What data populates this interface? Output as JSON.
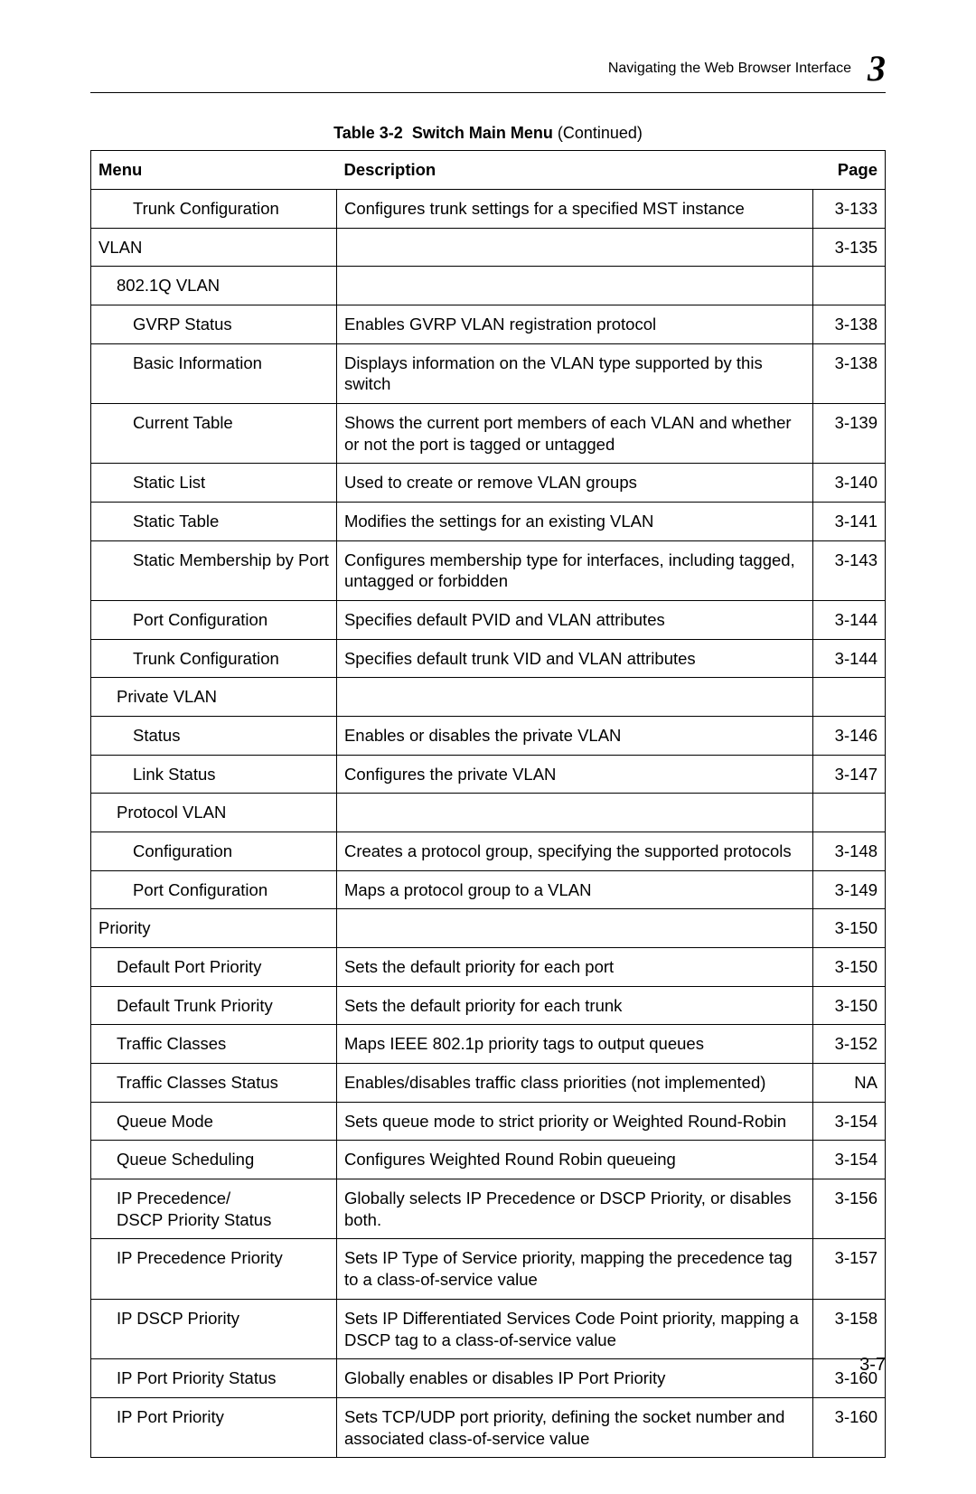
{
  "header": {
    "title": "Navigating the Web Browser Interface",
    "chapter_number": "3"
  },
  "caption": {
    "prefix": "Table 3-2",
    "title": "Switch Main Menu",
    "suffix": "(Continued)"
  },
  "table": {
    "columns": [
      "Menu",
      "Description",
      "Page"
    ],
    "rows": [
      {
        "indent": 2,
        "menu": "Trunk Configuration",
        "description": "Configures trunk settings for a specified MST instance",
        "page": "3-133"
      },
      {
        "indent": 0,
        "menu": "VLAN",
        "description": "",
        "page": "3-135"
      },
      {
        "indent": 1,
        "menu": "802.1Q VLAN",
        "description": "",
        "page": ""
      },
      {
        "indent": 2,
        "menu": "GVRP Status",
        "description": "Enables GVRP VLAN registration protocol",
        "page": "3-138"
      },
      {
        "indent": 2,
        "menu": "Basic Information",
        "description": "Displays information on the VLAN type supported by this switch",
        "page": "3-138"
      },
      {
        "indent": 2,
        "menu": "Current Table",
        "description": "Shows the current port members of each VLAN and whether or not the port is tagged or untagged",
        "page": "3-139"
      },
      {
        "indent": 2,
        "menu": "Static List",
        "description": "Used to create or remove VLAN groups",
        "page": "3-140"
      },
      {
        "indent": 2,
        "menu": "Static Table",
        "description": "Modifies the settings for an existing VLAN",
        "page": "3-141"
      },
      {
        "indent": 2,
        "menu": "Static Membership by Port",
        "description": "Configures membership type for interfaces, including tagged, untagged or forbidden",
        "page": "3-143"
      },
      {
        "indent": 2,
        "menu": "Port Configuration",
        "description": "Specifies default PVID and VLAN attributes",
        "page": "3-144"
      },
      {
        "indent": 2,
        "menu": "Trunk Configuration",
        "description": "Specifies default trunk VID and VLAN attributes",
        "page": "3-144"
      },
      {
        "indent": 1,
        "menu": "Private VLAN",
        "description": "",
        "page": ""
      },
      {
        "indent": 2,
        "menu": "Status",
        "description": "Enables or disables the private VLAN",
        "page": "3-146"
      },
      {
        "indent": 2,
        "menu": "Link Status",
        "description": "Configures the private VLAN",
        "page": "3-147"
      },
      {
        "indent": 1,
        "menu": "Protocol VLAN",
        "description": "",
        "page": ""
      },
      {
        "indent": 2,
        "menu": "Configuration",
        "description": "Creates a protocol group, specifying the supported protocols",
        "page": "3-148"
      },
      {
        "indent": 2,
        "menu": "Port Configuration",
        "description": "Maps a protocol group to a VLAN",
        "page": "3-149"
      },
      {
        "indent": 0,
        "menu": "Priority",
        "description": "",
        "page": "3-150"
      },
      {
        "indent": 1,
        "menu": "Default Port Priority",
        "description": "Sets the default priority for each port",
        "page": "3-150"
      },
      {
        "indent": 1,
        "menu": "Default Trunk Priority",
        "description": "Sets the default priority for each trunk",
        "page": "3-150"
      },
      {
        "indent": 1,
        "menu": "Traffic Classes",
        "description": "Maps IEEE 802.1p priority tags to output queues",
        "page": "3-152"
      },
      {
        "indent": 1,
        "menu": "Traffic Classes Status",
        "description": "Enables/disables traffic class priorities (not implemented)",
        "page": "NA"
      },
      {
        "indent": 1,
        "menu": "Queue Mode",
        "description": "Sets queue mode to strict priority or Weighted Round-Robin",
        "page": "3-154"
      },
      {
        "indent": 1,
        "menu": "Queue Scheduling",
        "description": "Configures Weighted Round Robin queueing",
        "page": "3-154"
      },
      {
        "indent": 1,
        "menu": "IP Precedence/\nDSCP Priority Status",
        "description": "Globally selects IP Precedence or DSCP Priority, or disables both.",
        "page": "3-156"
      },
      {
        "indent": 1,
        "menu": "IP Precedence Priority",
        "description": "Sets IP Type of Service priority, mapping the precedence tag to a class-of-service value",
        "page": "3-157"
      },
      {
        "indent": 1,
        "menu": "IP DSCP Priority",
        "description": "Sets IP Differentiated Services Code Point priority, mapping a DSCP tag to a class-of-service value",
        "page": "3-158"
      },
      {
        "indent": 1,
        "menu": "IP Port Priority Status",
        "description": "Globally enables or disables IP Port Priority",
        "page": "3-160"
      },
      {
        "indent": 1,
        "menu": "IP Port Priority",
        "description": "Sets TCP/UDP port priority, defining the socket number and associated class-of-service value",
        "page": "3-160"
      }
    ]
  },
  "footer": {
    "page_number": "3-7"
  }
}
